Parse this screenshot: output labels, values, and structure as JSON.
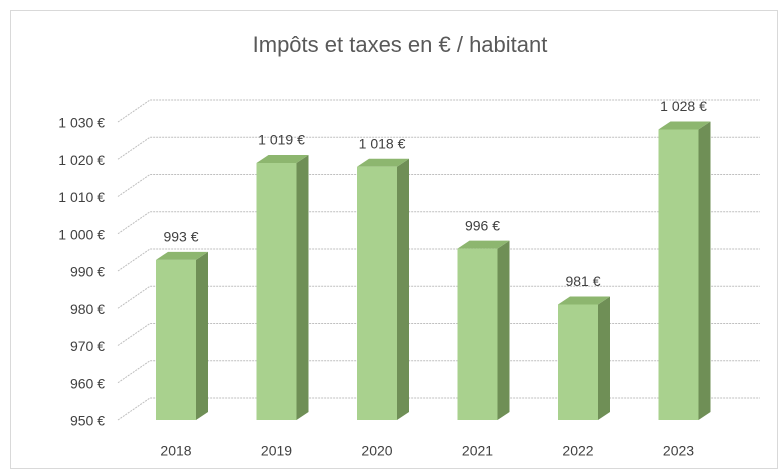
{
  "chart_data": {
    "type": "bar3d",
    "title": "Impôts et taxes en € / habitant",
    "categories": [
      "2018",
      "2019",
      "2020",
      "2021",
      "2022",
      "2023"
    ],
    "values": [
      993,
      1019,
      1018,
      996,
      981,
      1028
    ],
    "value_labels": [
      "993 €",
      "1 019 €",
      "1 018 €",
      "996 €",
      "981 €",
      "1 028 €"
    ],
    "color": "#a9d18e",
    "ylim": [
      950,
      1030
    ],
    "yticks": [
      {
        "value": 950,
        "label": "950 €"
      },
      {
        "value": 960,
        "label": "960 €"
      },
      {
        "value": 970,
        "label": "970 €"
      },
      {
        "value": 980,
        "label": "980 €"
      },
      {
        "value": 990,
        "label": "990 €"
      },
      {
        "value": 1000,
        "label": "1 000 €"
      },
      {
        "value": 1010,
        "label": "1 010 €"
      },
      {
        "value": 1020,
        "label": "1 020 €"
      },
      {
        "value": 1030,
        "label": "1 030 €"
      }
    ],
    "grid": true
  }
}
